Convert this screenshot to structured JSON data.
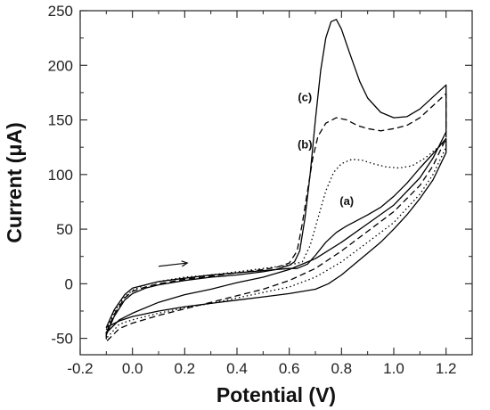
{
  "chart_data": {
    "type": "line",
    "xlabel": "Potential (V)",
    "ylabel": "Current (μA)",
    "xlim": [
      -0.2,
      1.3
    ],
    "ylim": [
      -65,
      250
    ],
    "xticks": [
      "-0.2",
      "0.0",
      "0.2",
      "0.4",
      "0.6",
      "0.8",
      "1.0",
      "1.2"
    ],
    "yticks": [
      "250",
      "200",
      "150",
      "100",
      "50",
      "0",
      "-50"
    ],
    "annotations": [
      {
        "text": "(c)",
        "x": 0.66,
        "y": 167
      },
      {
        "text": "(b)",
        "x": 0.66,
        "y": 124
      },
      {
        "text": "(a)",
        "x": 0.82,
        "y": 72
      }
    ],
    "arrow": {
      "from": [
        0.1,
        16
      ],
      "to": [
        0.21,
        19
      ]
    },
    "series": [
      {
        "style": "solid",
        "color": "#000000",
        "forward": [
          [
            -0.1,
            -47
          ],
          [
            -0.07,
            -30
          ],
          [
            -0.03,
            -15
          ],
          [
            0.0,
            -9
          ],
          [
            0.05,
            -4
          ],
          [
            0.1,
            -1
          ],
          [
            0.2,
            3
          ],
          [
            0.3,
            6
          ],
          [
            0.4,
            8
          ],
          [
            0.5,
            11
          ],
          [
            0.55,
            13
          ],
          [
            0.6,
            17
          ],
          [
            0.62,
            20
          ],
          [
            0.64,
            30
          ],
          [
            0.66,
            60
          ],
          [
            0.68,
            100
          ],
          [
            0.7,
            150
          ],
          [
            0.72,
            195
          ],
          [
            0.74,
            225
          ],
          [
            0.76,
            240
          ],
          [
            0.78,
            242
          ],
          [
            0.8,
            233
          ],
          [
            0.83,
            212
          ],
          [
            0.87,
            185
          ],
          [
            0.9,
            170
          ],
          [
            0.95,
            157
          ],
          [
            1.0,
            152
          ],
          [
            1.05,
            153
          ],
          [
            1.1,
            160
          ],
          [
            1.15,
            171
          ],
          [
            1.2,
            182
          ]
        ],
        "reverse": [
          [
            1.2,
            139
          ],
          [
            1.15,
            115
          ],
          [
            1.1,
            97
          ],
          [
            1.0,
            72
          ],
          [
            0.9,
            55
          ],
          [
            0.8,
            38
          ],
          [
            0.7,
            23
          ],
          [
            0.6,
            13
          ],
          [
            0.5,
            6
          ],
          [
            0.4,
            1
          ],
          [
            0.3,
            -5
          ],
          [
            0.2,
            -10
          ],
          [
            0.1,
            -17
          ],
          [
            0.0,
            -27
          ],
          [
            -0.05,
            -33
          ],
          [
            -0.1,
            -45
          ]
        ]
      },
      {
        "style": "dashed",
        "color": "#000000",
        "forward": [
          [
            -0.1,
            -45
          ],
          [
            -0.07,
            -28
          ],
          [
            -0.03,
            -13
          ],
          [
            0.0,
            -7
          ],
          [
            0.05,
            -3
          ],
          [
            0.1,
            0
          ],
          [
            0.2,
            4
          ],
          [
            0.3,
            7
          ],
          [
            0.4,
            10
          ],
          [
            0.5,
            13
          ],
          [
            0.55,
            15
          ],
          [
            0.6,
            19
          ],
          [
            0.63,
            30
          ],
          [
            0.65,
            55
          ],
          [
            0.67,
            85
          ],
          [
            0.69,
            115
          ],
          [
            0.71,
            135
          ],
          [
            0.74,
            147
          ],
          [
            0.78,
            152
          ],
          [
            0.82,
            150
          ],
          [
            0.86,
            145
          ],
          [
            0.9,
            142
          ],
          [
            0.95,
            140
          ],
          [
            1.0,
            142
          ],
          [
            1.05,
            145
          ],
          [
            1.1,
            152
          ],
          [
            1.15,
            163
          ],
          [
            1.2,
            174
          ]
        ],
        "reverse": [
          [
            1.2,
            133
          ],
          [
            1.15,
            108
          ],
          [
            1.1,
            90
          ],
          [
            1.0,
            66
          ],
          [
            0.9,
            48
          ],
          [
            0.8,
            30
          ],
          [
            0.7,
            14
          ],
          [
            0.6,
            3
          ],
          [
            0.5,
            -5
          ],
          [
            0.4,
            -11
          ],
          [
            0.3,
            -17
          ],
          [
            0.2,
            -23
          ],
          [
            0.1,
            -29
          ],
          [
            0.0,
            -36
          ],
          [
            -0.05,
            -41
          ],
          [
            -0.1,
            -53
          ]
        ]
      },
      {
        "style": "dotted",
        "color": "#000000",
        "forward": [
          [
            -0.1,
            -42
          ],
          [
            -0.07,
            -26
          ],
          [
            -0.03,
            -12
          ],
          [
            0.0,
            -6
          ],
          [
            0.05,
            -1
          ],
          [
            0.1,
            2
          ],
          [
            0.2,
            6
          ],
          [
            0.3,
            8
          ],
          [
            0.4,
            11
          ],
          [
            0.5,
            14
          ],
          [
            0.6,
            17
          ],
          [
            0.65,
            20
          ],
          [
            0.68,
            35
          ],
          [
            0.71,
            60
          ],
          [
            0.74,
            85
          ],
          [
            0.77,
            102
          ],
          [
            0.8,
            110
          ],
          [
            0.84,
            114
          ],
          [
            0.88,
            113
          ],
          [
            0.92,
            110
          ],
          [
            0.97,
            107
          ],
          [
            1.02,
            106
          ],
          [
            1.07,
            108
          ],
          [
            1.12,
            115
          ],
          [
            1.16,
            123
          ],
          [
            1.2,
            130
          ]
        ],
        "reverse": [
          [
            1.2,
            125
          ],
          [
            1.15,
            100
          ],
          [
            1.1,
            82
          ],
          [
            1.0,
            56
          ],
          [
            0.9,
            38
          ],
          [
            0.8,
            20
          ],
          [
            0.7,
            6
          ],
          [
            0.6,
            -3
          ],
          [
            0.5,
            -8
          ],
          [
            0.4,
            -13
          ],
          [
            0.3,
            -18
          ],
          [
            0.2,
            -22
          ],
          [
            0.1,
            -27
          ],
          [
            0.0,
            -33
          ],
          [
            -0.05,
            -37
          ],
          [
            -0.1,
            -50
          ]
        ]
      },
      {
        "style": "solid",
        "color": "#000000",
        "forward": [
          [
            -0.1,
            -40
          ],
          [
            -0.07,
            -24
          ],
          [
            -0.03,
            -10
          ],
          [
            0.0,
            -4
          ],
          [
            0.1,
            2
          ],
          [
            0.2,
            5
          ],
          [
            0.3,
            8
          ],
          [
            0.4,
            10
          ],
          [
            0.5,
            12
          ],
          [
            0.6,
            14
          ],
          [
            0.63,
            14
          ],
          [
            0.67,
            18
          ],
          [
            0.7,
            26
          ],
          [
            0.74,
            38
          ],
          [
            0.78,
            47
          ],
          [
            0.82,
            53
          ],
          [
            0.86,
            58
          ],
          [
            0.9,
            63
          ],
          [
            0.95,
            70
          ],
          [
            1.0,
            80
          ],
          [
            1.05,
            92
          ],
          [
            1.1,
            106
          ],
          [
            1.15,
            119
          ],
          [
            1.2,
            133
          ]
        ],
        "reverse": [
          [
            1.2,
            120
          ],
          [
            1.15,
            95
          ],
          [
            1.1,
            78
          ],
          [
            1.05,
            63
          ],
          [
            1.0,
            50
          ],
          [
            0.95,
            38
          ],
          [
            0.9,
            28
          ],
          [
            0.85,
            18
          ],
          [
            0.8,
            8
          ],
          [
            0.75,
            0
          ],
          [
            0.7,
            -5
          ],
          [
            0.6,
            -9
          ],
          [
            0.5,
            -12
          ],
          [
            0.4,
            -15
          ],
          [
            0.3,
            -18
          ],
          [
            0.2,
            -21
          ],
          [
            0.1,
            -25
          ],
          [
            0.0,
            -30
          ],
          [
            -0.05,
            -34
          ],
          [
            -0.1,
            -40
          ]
        ]
      }
    ]
  }
}
